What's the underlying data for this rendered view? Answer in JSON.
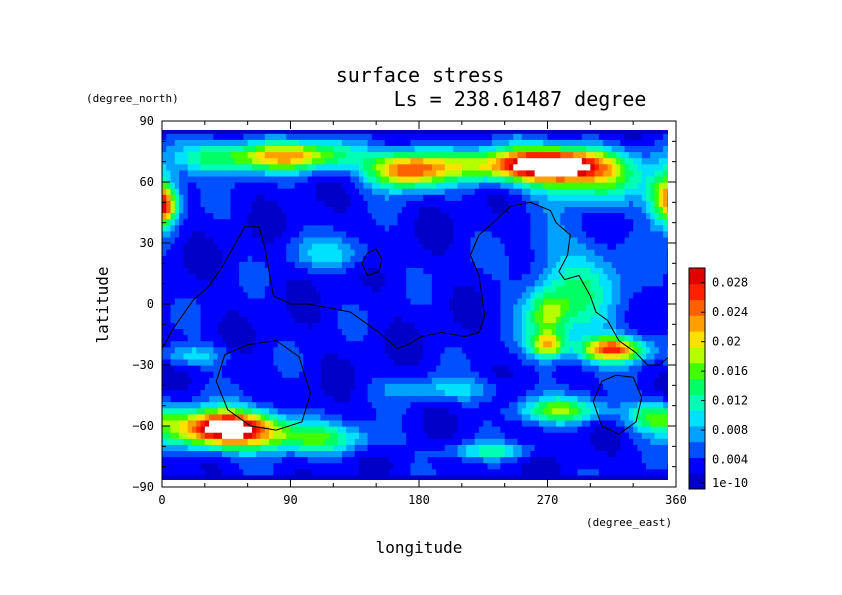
{
  "chart_data": {
    "type": "heatmap",
    "title": "surface stress",
    "subtitle": "Ls = 238.61487 degree",
    "xlabel": "longitude",
    "ylabel": "latitude",
    "x_unit": "(degree_east)",
    "y_unit": "(degree_north)",
    "xlim": [
      0,
      360
    ],
    "ylim": [
      -90,
      90
    ],
    "x_ticks": [
      "0",
      "90",
      "180",
      "270",
      "360"
    ],
    "y_ticks": [
      "90",
      "60",
      "30",
      "0",
      "−30",
      "−60",
      "−90"
    ],
    "colorbar": {
      "labels": [
        "0.028",
        "0.024",
        "0.02",
        "0.016",
        "0.012",
        "0.008",
        "0.004",
        "1e-10"
      ],
      "levels": [
        0.028,
        0.024,
        0.02,
        0.016,
        0.012,
        0.008,
        0.004,
        1e-10
      ],
      "range": [
        0,
        0.03
      ],
      "colors": [
        "#0000c8",
        "#0000ff",
        "#0050ff",
        "#00a0ff",
        "#00e0ff",
        "#00ffb4",
        "#00ff64",
        "#40ff00",
        "#b4ff00",
        "#ffe000",
        "#ffa000",
        "#ff6000",
        "#ff2000",
        "#e00000"
      ]
    },
    "background_level": 0.003,
    "features": [
      {
        "lon": 95,
        "lat": 73,
        "value": 0.017,
        "dlon": 40,
        "dlat": 7
      },
      {
        "lon": 170,
        "lat": 66,
        "value": 0.019,
        "dlon": 26,
        "dlat": 9
      },
      {
        "lon": 275,
        "lat": 69,
        "value": 0.031,
        "dlon": 40,
        "dlat": 8
      },
      {
        "lon": 215,
        "lat": 68,
        "value": 0.011,
        "dlon": 50,
        "dlat": 8
      },
      {
        "lon": 40,
        "lat": 72,
        "value": 0.01,
        "dlon": 40,
        "dlat": 8
      },
      {
        "lon": 355,
        "lat": 52,
        "value": 0.02,
        "dlon": 14,
        "dlat": 13
      },
      {
        "lon": 2,
        "lat": 48,
        "value": 0.012,
        "dlon": 8,
        "dlat": 8
      },
      {
        "lon": 300,
        "lat": 60,
        "value": 0.01,
        "dlon": 40,
        "dlat": 10
      },
      {
        "lon": 45,
        "lat": -61,
        "value": 0.032,
        "dlon": 38,
        "dlat": 9
      },
      {
        "lon": 110,
        "lat": -66,
        "value": 0.01,
        "dlon": 40,
        "dlat": 7
      },
      {
        "lon": 280,
        "lat": -52,
        "value": 0.013,
        "dlon": 30,
        "dlat": 6
      },
      {
        "lon": 345,
        "lat": -55,
        "value": 0.012,
        "dlon": 20,
        "dlat": 7
      },
      {
        "lon": 315,
        "lat": -22,
        "value": 0.021,
        "dlon": 22,
        "dlat": 6
      },
      {
        "lon": 270,
        "lat": -20,
        "value": 0.015,
        "dlon": 12,
        "dlat": 6
      },
      {
        "lon": 290,
        "lat": 5,
        "value": 0.009,
        "dlon": 35,
        "dlat": 28
      },
      {
        "lon": 270,
        "lat": -5,
        "value": 0.01,
        "dlon": 14,
        "dlat": 12
      },
      {
        "lon": 20,
        "lat": -25,
        "value": 0.007,
        "dlon": 25,
        "dlat": 5
      },
      {
        "lon": 120,
        "lat": 25,
        "value": 0.006,
        "dlon": 30,
        "dlat": 8
      },
      {
        "lon": 200,
        "lat": -42,
        "value": 0.006,
        "dlon": 40,
        "dlat": 6
      },
      {
        "lon": 230,
        "lat": -72,
        "value": 0.008,
        "dlon": 30,
        "dlat": 4
      }
    ],
    "contours": [
      {
        "name": "continent",
        "points": [
          [
            0,
            -22
          ],
          [
            8,
            -12
          ],
          [
            22,
            2
          ],
          [
            32,
            8
          ],
          [
            42,
            18
          ],
          [
            58,
            38
          ],
          [
            68,
            38
          ],
          [
            72,
            28
          ],
          [
            78,
            4
          ],
          [
            90,
            0
          ],
          [
            102,
            0
          ],
          [
            118,
            -2
          ],
          [
            132,
            -4
          ],
          [
            140,
            -8
          ],
          [
            152,
            -14
          ],
          [
            165,
            -22
          ],
          [
            172,
            -20
          ],
          [
            182,
            -16
          ],
          [
            196,
            -14
          ],
          [
            212,
            -16
          ],
          [
            222,
            -14
          ],
          [
            226,
            -6
          ],
          [
            222,
            14
          ],
          [
            216,
            24
          ],
          [
            222,
            34
          ],
          [
            232,
            40
          ],
          [
            244,
            48
          ],
          [
            258,
            50
          ],
          [
            272,
            46
          ],
          [
            276,
            40
          ],
          [
            286,
            34
          ],
          [
            284,
            24
          ],
          [
            278,
            16
          ],
          [
            282,
            12
          ],
          [
            292,
            14
          ],
          [
            300,
            4
          ],
          [
            304,
            -4
          ],
          [
            312,
            -8
          ],
          [
            320,
            -18
          ],
          [
            332,
            -24
          ],
          [
            340,
            -30
          ],
          [
            348,
            -30
          ],
          [
            362,
            -22
          ]
        ]
      },
      {
        "name": "island",
        "points": [
          [
            140,
            20
          ],
          [
            144,
            25
          ],
          [
            150,
            27
          ],
          [
            154,
            22
          ],
          [
            152,
            16
          ],
          [
            144,
            14
          ],
          [
            140,
            20
          ]
        ]
      },
      {
        "name": "loop-south-west",
        "points": [
          [
            60,
            -20
          ],
          [
            80,
            -18
          ],
          [
            96,
            -26
          ],
          [
            104,
            -44
          ],
          [
            98,
            -58
          ],
          [
            80,
            -62
          ],
          [
            62,
            -60
          ],
          [
            46,
            -52
          ],
          [
            38,
            -38
          ],
          [
            44,
            -25
          ],
          [
            60,
            -20
          ]
        ]
      },
      {
        "name": "loop-south-east",
        "points": [
          [
            318,
            -35
          ],
          [
            330,
            -36
          ],
          [
            336,
            -46
          ],
          [
            332,
            -58
          ],
          [
            320,
            -64
          ],
          [
            308,
            -60
          ],
          [
            302,
            -48
          ],
          [
            308,
            -38
          ],
          [
            318,
            -35
          ]
        ]
      }
    ]
  }
}
